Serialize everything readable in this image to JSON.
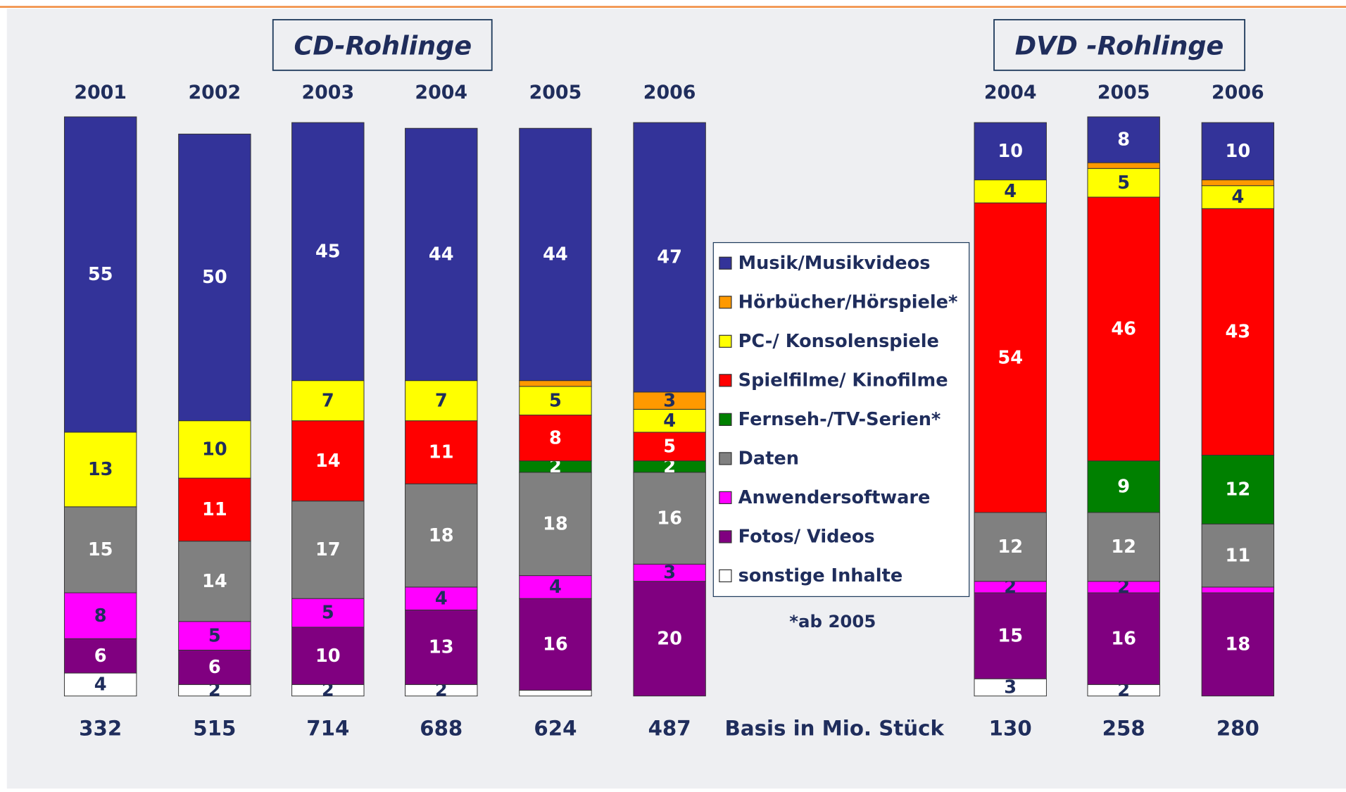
{
  "chart_data": [
    {
      "type": "bar",
      "stacked": true,
      "title": "CD-Rohlinge",
      "categories": [
        "2001",
        "2002",
        "2003",
        "2004",
        "2005",
        "2006"
      ],
      "basis": [
        332,
        515,
        714,
        688,
        624,
        487
      ],
      "ylim": [
        0,
        100
      ],
      "series": [
        {
          "name": "Musik/Musikvideos",
          "color": "#333399",
          "values": [
            55,
            50,
            45,
            44,
            44,
            47
          ]
        },
        {
          "name": "Hörbücher/Hörspiele*",
          "color": "#ff9900",
          "values": [
            null,
            null,
            null,
            null,
            1,
            3
          ]
        },
        {
          "name": "PC-/ Konsolenspiele",
          "color": "#ffff00",
          "values": [
            13,
            10,
            7,
            7,
            5,
            4
          ]
        },
        {
          "name": "Spielfilme/ Kinofilme",
          "color": "#ff0000",
          "values": [
            null,
            11,
            14,
            11,
            8,
            5
          ]
        },
        {
          "name": "Fernseh-/TV-Serien*",
          "color": "#008000",
          "values": [
            null,
            null,
            null,
            null,
            2,
            2
          ]
        },
        {
          "name": "Daten",
          "color": "#808080",
          "values": [
            15,
            14,
            17,
            18,
            18,
            16
          ]
        },
        {
          "name": "Anwendersoftware",
          "color": "#ff00ff",
          "values": [
            8,
            5,
            5,
            4,
            4,
            3
          ]
        },
        {
          "name": "Fotos/ Videos",
          "color": "#800080",
          "values": [
            6,
            6,
            10,
            13,
            16,
            20
          ]
        },
        {
          "name": "sonstige Inhalte",
          "color": "#ffffff",
          "values": [
            4,
            2,
            2,
            2,
            1,
            null
          ]
        }
      ]
    },
    {
      "type": "bar",
      "stacked": true,
      "title": "DVD -Rohlinge",
      "categories": [
        "2004",
        "2005",
        "2006"
      ],
      "basis": [
        130,
        258,
        280
      ],
      "ylim": [
        0,
        100
      ],
      "series": [
        {
          "name": "Musik/Musikvideos",
          "color": "#333399",
          "values": [
            10,
            8,
            10
          ]
        },
        {
          "name": "Hörbücher/Hörspiele*",
          "color": "#ff9900",
          "values": [
            null,
            1,
            1
          ]
        },
        {
          "name": "PC-/ Konsolenspiele",
          "color": "#ffff00",
          "values": [
            4,
            5,
            4
          ]
        },
        {
          "name": "Spielfilme/ Kinofilme",
          "color": "#ff0000",
          "values": [
            54,
            46,
            43
          ]
        },
        {
          "name": "Fernseh-/TV-Serien*",
          "color": "#008000",
          "values": [
            null,
            9,
            12
          ]
        },
        {
          "name": "Daten",
          "color": "#808080",
          "values": [
            12,
            12,
            11
          ]
        },
        {
          "name": "Anwendersoftware",
          "color": "#ff00ff",
          "values": [
            2,
            2,
            1
          ]
        },
        {
          "name": "Fotos/ Videos",
          "color": "#800080",
          "values": [
            15,
            16,
            18
          ]
        },
        {
          "name": "sonstige Inhalte",
          "color": "#ffffff",
          "values": [
            3,
            2,
            null
          ]
        }
      ]
    }
  ],
  "basis_label": "Basis in Mio. Stück",
  "footnote": "*ab 2005"
}
